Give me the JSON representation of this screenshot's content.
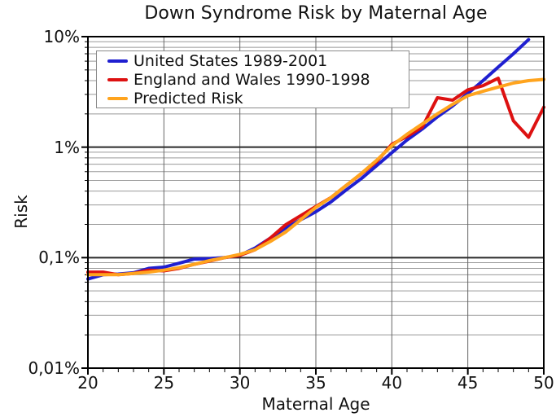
{
  "title": "Down Syndrome Risk by Maternal Age",
  "axes": {
    "x_label": "Maternal Age",
    "y_label": "Risk",
    "x_tick_labels": [
      "20",
      "25",
      "30",
      "35",
      "40",
      "45",
      "50"
    ],
    "y_tick_labels": [
      "10%",
      "1%",
      "0,1%",
      "0,01%"
    ]
  },
  "chart_data": {
    "type": "line",
    "title": "Down Syndrome Risk by Maternal Age",
    "xlabel": "Maternal Age",
    "ylabel": "Risk",
    "x_axis": {
      "min": 20,
      "max": 50,
      "major_ticks": [
        20,
        25,
        30,
        35,
        40,
        45,
        50
      ],
      "minor_tick_step": 1
    },
    "y_axis": {
      "scale": "log",
      "unit": "percent",
      "min": 0.01,
      "max": 10,
      "major_ticks": [
        10,
        1,
        0.1,
        0.01
      ],
      "tick_labels": [
        "10%",
        "1%",
        "0,1%",
        "0,01%"
      ],
      "minor_gridlines": "multiples 2-9 of each decade"
    },
    "grid": true,
    "legend_position": "top-left",
    "series": [
      {
        "name": "United States 1989-2001",
        "color": "#1f1fd0",
        "ages": [
          20,
          21,
          22,
          23,
          24,
          25,
          26,
          27,
          28,
          29,
          30,
          31,
          32,
          33,
          34,
          35,
          36,
          37,
          38,
          39,
          40,
          41,
          42,
          43,
          44,
          45,
          46,
          47,
          48,
          49
        ],
        "values_percent": [
          0.064,
          0.07,
          0.071,
          0.073,
          0.08,
          0.082,
          0.089,
          0.097,
          0.098,
          0.1,
          0.105,
          0.122,
          0.15,
          0.185,
          0.22,
          0.26,
          0.32,
          0.41,
          0.52,
          0.68,
          0.89,
          1.16,
          1.46,
          1.88,
          2.36,
          3.06,
          4.0,
          5.3,
          7.0,
          9.4
        ]
      },
      {
        "name": "England and Wales 1990-1998",
        "color": "#dd1111",
        "ages": [
          20,
          21,
          22,
          23,
          24,
          25,
          26,
          27,
          28,
          29,
          30,
          31,
          32,
          33,
          34,
          35,
          36,
          37,
          38,
          39,
          40,
          41,
          42,
          43,
          44,
          45,
          46,
          47,
          48,
          49,
          50
        ],
        "values_percent": [
          0.074,
          0.074,
          0.07,
          0.072,
          0.077,
          0.076,
          0.08,
          0.087,
          0.093,
          0.1,
          0.105,
          0.118,
          0.15,
          0.198,
          0.24,
          0.29,
          0.35,
          0.45,
          0.575,
          0.74,
          1.06,
          1.25,
          1.52,
          2.8,
          2.66,
          3.3,
          3.6,
          4.2,
          1.73,
          1.23,
          2.3
        ]
      },
      {
        "name": "Predicted Risk",
        "color": "#ffa41e",
        "ages": [
          20,
          21,
          22,
          23,
          24,
          25,
          26,
          27,
          28,
          29,
          30,
          31,
          32,
          33,
          34,
          35,
          36,
          37,
          38,
          39,
          40,
          41,
          42,
          43,
          44,
          45,
          46,
          47,
          48,
          49,
          50
        ],
        "values_percent": [
          0.07,
          0.07,
          0.07,
          0.072,
          0.074,
          0.077,
          0.081,
          0.087,
          0.094,
          0.1,
          0.107,
          0.118,
          0.14,
          0.17,
          0.22,
          0.285,
          0.35,
          0.45,
          0.58,
          0.76,
          1.03,
          1.31,
          1.62,
          2.0,
          2.44,
          2.92,
          3.2,
          3.5,
          3.8,
          4.0,
          4.1
        ]
      }
    ]
  },
  "style": {
    "minor_grid_color": "#999999",
    "vertical_grid_color": "#666666",
    "major_grid_color": "#2a2a2a",
    "border_color": "#000000",
    "background": "#ffffff"
  }
}
